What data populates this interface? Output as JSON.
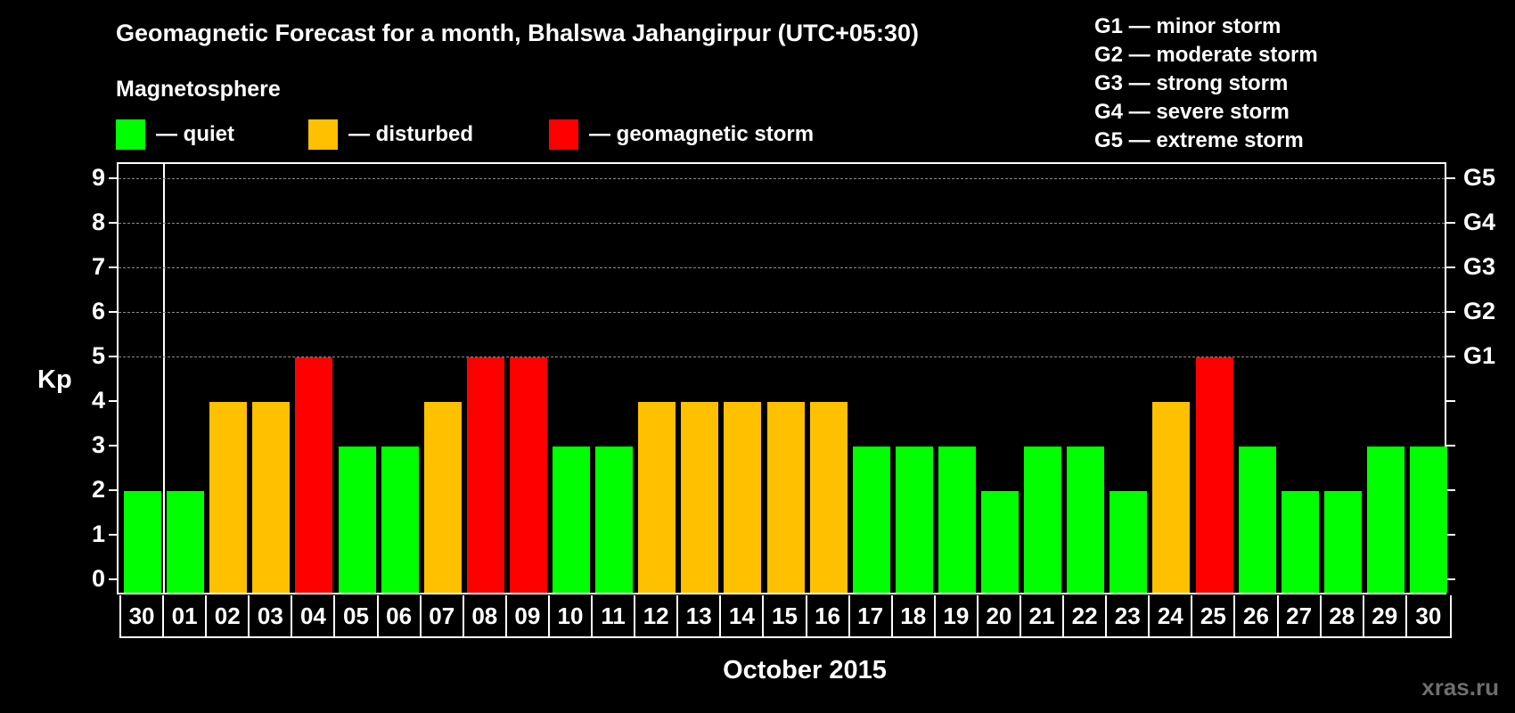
{
  "header": {
    "title": "Geomagnetic Forecast for a month, Bhalswa Jahangirpur (UTC+05:30)",
    "subtitle": "Magnetosphere"
  },
  "legend": [
    {
      "label": "— quiet",
      "color": "#00ff00"
    },
    {
      "label": "— disturbed",
      "color": "#ffc000"
    },
    {
      "label": "— geomagnetic storm",
      "color": "#ff0000"
    }
  ],
  "storm_scale": [
    "G1 — minor storm",
    "G2 — moderate storm",
    "G3 — strong storm",
    "G4 — severe storm",
    "G5 — extreme storm"
  ],
  "watermark": "xras.ru",
  "chart_data": {
    "type": "bar",
    "title": "Geomagnetic Forecast for a month, Bhalswa Jahangirpur (UTC+05:30)",
    "xlabel": "October 2015",
    "ylabel": "Kp",
    "ylim": [
      0,
      9
    ],
    "yticks": [
      0,
      1,
      2,
      3,
      4,
      5,
      6,
      7,
      8,
      9
    ],
    "right_axis_labels": {
      "5": "G1",
      "6": "G2",
      "7": "G3",
      "8": "G4",
      "9": "G5"
    },
    "grid": "dashed horizontal at Kp 5-9",
    "categories": [
      "30",
      "01",
      "02",
      "03",
      "04",
      "05",
      "06",
      "07",
      "08",
      "09",
      "10",
      "11",
      "12",
      "13",
      "14",
      "15",
      "16",
      "17",
      "18",
      "19",
      "20",
      "21",
      "22",
      "23",
      "24",
      "25",
      "26",
      "27",
      "28",
      "29",
      "30"
    ],
    "values": [
      2,
      2,
      4,
      4,
      5,
      3,
      3,
      4,
      5,
      5,
      3,
      3,
      4,
      4,
      4,
      4,
      4,
      3,
      3,
      3,
      2,
      3,
      3,
      2,
      4,
      5,
      3,
      2,
      2,
      3,
      3
    ],
    "status": [
      "quiet",
      "quiet",
      "disturbed",
      "disturbed",
      "storm",
      "quiet",
      "quiet",
      "disturbed",
      "storm",
      "storm",
      "quiet",
      "quiet",
      "disturbed",
      "disturbed",
      "disturbed",
      "disturbed",
      "disturbed",
      "quiet",
      "quiet",
      "quiet",
      "quiet",
      "quiet",
      "quiet",
      "quiet",
      "disturbed",
      "storm",
      "quiet",
      "quiet",
      "quiet",
      "quiet",
      "quiet"
    ],
    "colors": {
      "quiet": "#00ff00",
      "disturbed": "#ffc000",
      "storm": "#ff0000"
    }
  }
}
